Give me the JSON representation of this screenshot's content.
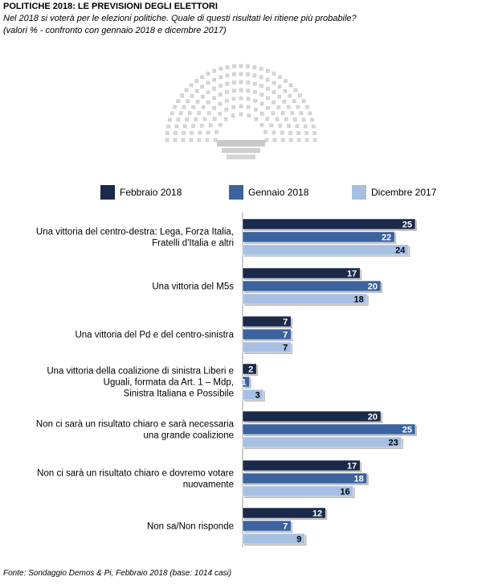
{
  "header": {
    "title": "POLITICHE 2018: LE PREVISIONI DEGLI ELETTORI",
    "subtitle_line1": "Nel 2018 si voterà per le elezioni politiche. Quale di questi risultati lei ritiene più probabile?",
    "subtitle_line2": "(valori % - confronto con gennaio 2018 e dicembre 2017)"
  },
  "footer": {
    "source": "Fonte: Sondaggio Demos & Pi, Febbraio 2018 (base: 1014 casi)"
  },
  "colors": {
    "feb": "#1b2a4a",
    "gen": "#3c639f",
    "dic": "#a7c0e2"
  },
  "chart_data": {
    "type": "bar",
    "orientation": "horizontal",
    "categories": [
      [
        "Una vittoria del centro-destra: Lega, Forza Italia,",
        "Fratelli d'Italia e altri"
      ],
      [
        "Una vittoria del M5s"
      ],
      [
        "Una vittoria del Pd e del centro-sinistra"
      ],
      [
        "Una vittoria della coalizione di sinistra Liberi e",
        "Uguali, formata da Art. 1 – Mdp,",
        "Sinistra Italiana e Possibile"
      ],
      [
        "Non ci sarà un risultato chiaro e sarà necessaria",
        "una grande coalizione"
      ],
      [
        "Non ci sarà un risultato chiaro e dovremo votare",
        "nuovamente"
      ],
      [
        "Non sa/Non risponde"
      ]
    ],
    "series": [
      {
        "name": "Febbraio 2018",
        "values": [
          25,
          17,
          7,
          2,
          20,
          17,
          12
        ]
      },
      {
        "name": "Gennaio 2018",
        "values": [
          22,
          20,
          7,
          1,
          25,
          18,
          7
        ]
      },
      {
        "name": "Dicembre 2017",
        "values": [
          24,
          18,
          7,
          3,
          23,
          16,
          9
        ]
      }
    ],
    "legend_position": "top",
    "grid": false,
    "xlim": [
      0,
      30
    ]
  }
}
